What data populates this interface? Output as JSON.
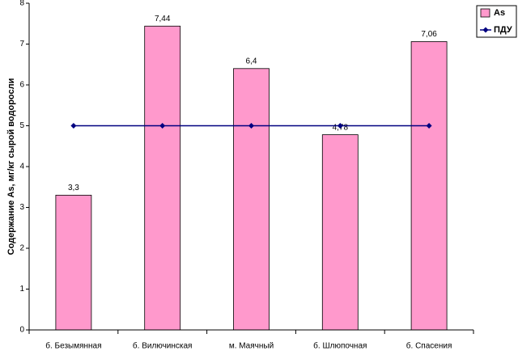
{
  "chart_data": {
    "type": "bar",
    "y_label": "Содержание As, мг/кг сырой водоросли",
    "categories": [
      "б. Безымянная",
      "б. Вилючинская",
      "м. Маячный",
      "б. Шлюпочная",
      "б. Спасения"
    ],
    "series": [
      {
        "name": "As",
        "color": "#ff99cc",
        "values": [
          3.3,
          7.44,
          6.4,
          4.78,
          7.06
        ],
        "value_labels": [
          "3,3",
          "7,44",
          "6,4",
          "4,78",
          "7,06"
        ]
      },
      {
        "name": "ПДУ",
        "type": "line",
        "color": "#000080",
        "values": [
          5,
          5,
          5,
          5,
          5
        ]
      }
    ],
    "ylim": [
      0,
      8
    ],
    "yticks": [
      0,
      1,
      2,
      3,
      4,
      5,
      6,
      7,
      8
    ],
    "grid": false,
    "legend": "top-right"
  }
}
